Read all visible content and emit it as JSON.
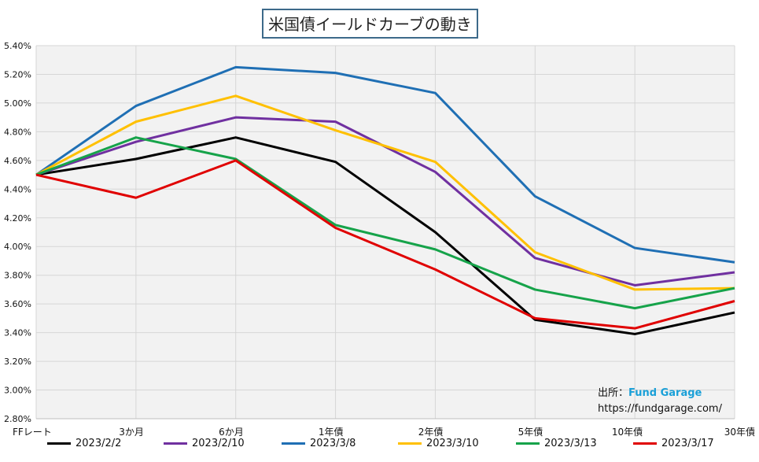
{
  "chart_data": {
    "type": "line",
    "title": "米国債イールドカーブの動き",
    "categories": [
      "FFレート",
      "3か月",
      "6か月",
      "1年債",
      "2年債",
      "5年債",
      "10年債",
      "30年債"
    ],
    "ylim": [
      2.8,
      5.4
    ],
    "yticks": [
      "2.80%",
      "3.00%",
      "3.20%",
      "3.40%",
      "3.60%",
      "3.80%",
      "4.00%",
      "4.20%",
      "4.40%",
      "4.60%",
      "4.80%",
      "5.00%",
      "5.20%",
      "5.40%"
    ],
    "grid": true,
    "legend_position": "bottom",
    "series": [
      {
        "name": "2023/2/2",
        "color": "#000000",
        "values": [
          4.5,
          4.61,
          4.76,
          4.59,
          4.1,
          3.49,
          3.39,
          3.54
        ]
      },
      {
        "name": "2023/2/10",
        "color": "#7030a0",
        "values": [
          4.5,
          4.73,
          4.9,
          4.87,
          4.52,
          3.92,
          3.73,
          3.82
        ]
      },
      {
        "name": "2023/3/8",
        "color": "#1f6fb4",
        "values": [
          4.5,
          4.98,
          5.25,
          5.21,
          5.07,
          4.35,
          3.99,
          3.89
        ]
      },
      {
        "name": "2023/3/10",
        "color": "#ffc000",
        "values": [
          4.5,
          4.87,
          5.05,
          4.81,
          4.59,
          3.96,
          3.7,
          3.71
        ]
      },
      {
        "name": "2023/3/13",
        "color": "#16a34a",
        "values": [
          4.5,
          4.76,
          4.61,
          4.15,
          3.98,
          3.7,
          3.57,
          3.71
        ]
      },
      {
        "name": "2023/3/17",
        "color": "#e00000",
        "values": [
          4.5,
          4.34,
          4.6,
          4.13,
          3.84,
          3.5,
          3.43,
          3.62
        ]
      }
    ]
  },
  "source": {
    "label": "出所：",
    "brand": "Fund Garage",
    "url": "https://fundgarage.com/"
  }
}
